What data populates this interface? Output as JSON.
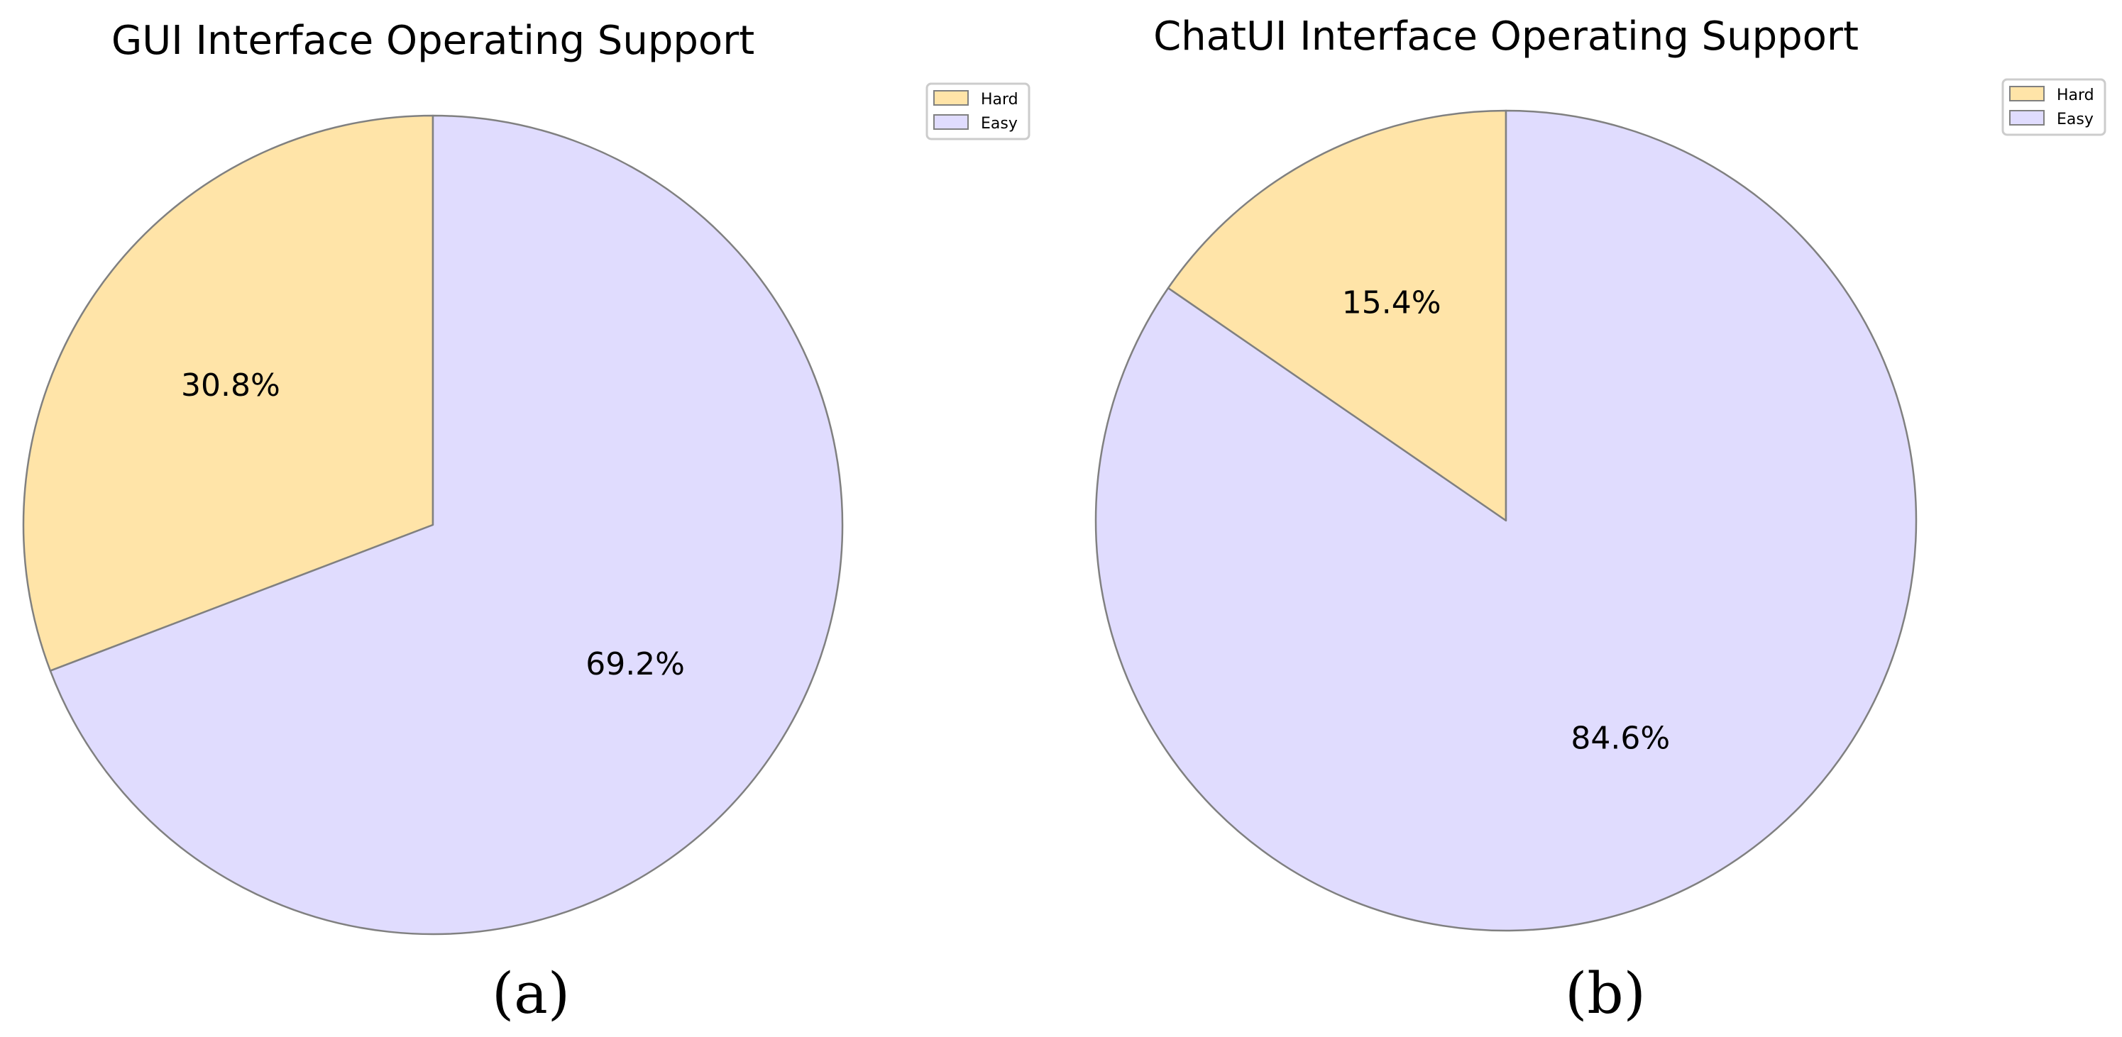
{
  "chart_data": [
    {
      "type": "pie",
      "title": "GUI Interface Operating Support",
      "caption": "(a)",
      "labels": [
        "Hard",
        "Easy"
      ],
      "values": [
        30.8,
        69.2
      ],
      "value_labels": [
        "30.8%",
        "69.2%"
      ],
      "colors": [
        "#FFE4A8",
        "#E0DCFE"
      ],
      "edge_color": "#808080",
      "start_angle_deg": 90,
      "direction": "counterclockwise",
      "legend": {
        "placement": "top-right",
        "entries": [
          "Hard",
          "Easy"
        ]
      }
    },
    {
      "type": "pie",
      "title": "ChatUI Interface Operating Support",
      "caption": "(b)",
      "labels": [
        "Hard",
        "Easy"
      ],
      "values": [
        15.4,
        84.6
      ],
      "value_labels": [
        "15.4%",
        "84.6%"
      ],
      "colors": [
        "#FFE4A8",
        "#E0DCFE"
      ],
      "edge_color": "#808080",
      "start_angle_deg": 90,
      "direction": "counterclockwise",
      "legend": {
        "placement": "top-right",
        "entries": [
          "Hard",
          "Easy"
        ]
      }
    }
  ]
}
